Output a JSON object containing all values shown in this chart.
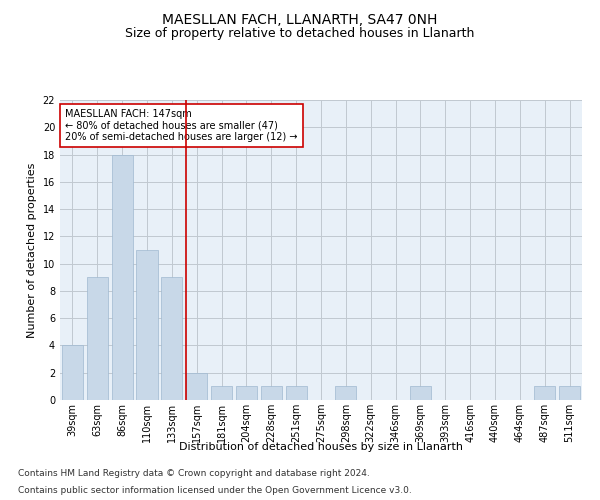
{
  "title": "MAESLLAN FACH, LLANARTH, SA47 0NH",
  "subtitle": "Size of property relative to detached houses in Llanarth",
  "xlabel": "Distribution of detached houses by size in Llanarth",
  "ylabel": "Number of detached properties",
  "categories": [
    "39sqm",
    "63sqm",
    "86sqm",
    "110sqm",
    "133sqm",
    "157sqm",
    "181sqm",
    "204sqm",
    "228sqm",
    "251sqm",
    "275sqm",
    "298sqm",
    "322sqm",
    "346sqm",
    "369sqm",
    "393sqm",
    "416sqm",
    "440sqm",
    "464sqm",
    "487sqm",
    "511sqm"
  ],
  "values": [
    4,
    9,
    18,
    11,
    9,
    2,
    1,
    1,
    1,
    1,
    0,
    1,
    0,
    0,
    1,
    0,
    0,
    0,
    0,
    1,
    1
  ],
  "bar_color": "#c8d8e8",
  "bar_edgecolor": "#a0b8d0",
  "vline_x_index": 4.55,
  "vline_color": "#cc0000",
  "ylim": [
    0,
    22
  ],
  "yticks": [
    0,
    2,
    4,
    6,
    8,
    10,
    12,
    14,
    16,
    18,
    20,
    22
  ],
  "annotation_text": "MAESLLAN FACH: 147sqm\n← 80% of detached houses are smaller (47)\n20% of semi-detached houses are larger (12) →",
  "annotation_box_color": "#ffffff",
  "annotation_box_edgecolor": "#cc0000",
  "footer1": "Contains HM Land Registry data © Crown copyright and database right 2024.",
  "footer2": "Contains public sector information licensed under the Open Government Licence v3.0.",
  "background_color": "#ffffff",
  "plot_bg_color": "#e8f0f8",
  "grid_color": "#c0c8d0",
  "title_fontsize": 10,
  "subtitle_fontsize": 9,
  "axis_label_fontsize": 8,
  "tick_fontsize": 7,
  "annotation_fontsize": 7,
  "footer_fontsize": 6.5
}
